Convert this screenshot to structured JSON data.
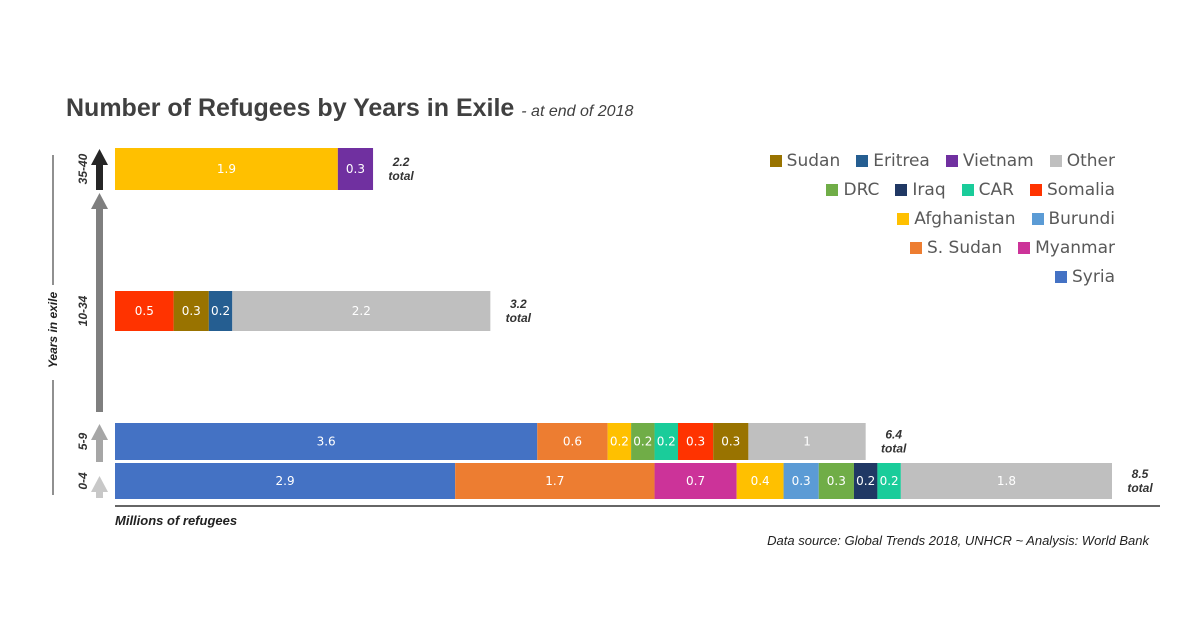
{
  "chart_data": {
    "type": "bar",
    "orientation": "horizontal",
    "stacked": true,
    "title": "Number of Refugees by Years in Exile",
    "subtitle": "- at end of 2018",
    "xlabel": "Millions of refugees",
    "ylabel": "Years in exile",
    "source": "Data source: Global Trends 2018, UNHCR  ~  Analysis: World Bank",
    "total_suffix": "total",
    "grid": false,
    "legend_position": "top-right",
    "colors": {
      "Sudan": "#997300",
      "Eritrea": "#255e91",
      "Vietnam": "#7030a0",
      "Other": "#bfbfbf",
      "DRC": "#70ad47",
      "Iraq": "#203864",
      "CAR": "#1acc9a",
      "Somalia": "#ff3300",
      "Afghanistan": "#ffc000",
      "Burundi": "#5b9bd5",
      "S. Sudan": "#ed7d31",
      "Myanmar": "#cc3399",
      "Syria": "#4472c4"
    },
    "legend_rows": [
      [
        "Sudan",
        "Eritrea",
        "Vietnam",
        "Other"
      ],
      [
        "DRC",
        "Iraq",
        "CAR",
        "Somalia"
      ],
      [
        "Afghanistan",
        "Burundi"
      ],
      [
        "S. Sudan",
        "Myanmar"
      ],
      [
        "Syria"
      ]
    ],
    "categories": [
      {
        "label": "35-40",
        "total": "2.2",
        "segments": [
          {
            "series": "Afghanistan",
            "value": 1.9,
            "label": "1.9"
          },
          {
            "series": "Vietnam",
            "value": 0.3,
            "label": "0.3"
          }
        ]
      },
      {
        "label": "10-34",
        "total": "3.2",
        "segments": [
          {
            "series": "Somalia",
            "value": 0.5,
            "label": "0.5"
          },
          {
            "series": "Sudan",
            "value": 0.3,
            "label": "0.3"
          },
          {
            "series": "Eritrea",
            "value": 0.2,
            "label": "0.2"
          },
          {
            "series": "Other",
            "value": 2.2,
            "label": "2.2"
          }
        ]
      },
      {
        "label": "5-9",
        "total": "6.4",
        "segments": [
          {
            "series": "Syria",
            "value": 3.6,
            "label": "3.6"
          },
          {
            "series": "S. Sudan",
            "value": 0.6,
            "label": "0.6"
          },
          {
            "series": "Afghanistan",
            "value": 0.2,
            "label": "0.2"
          },
          {
            "series": "DRC",
            "value": 0.2,
            "label": "0.2"
          },
          {
            "series": "CAR",
            "value": 0.2,
            "label": "0.2"
          },
          {
            "series": "Somalia",
            "value": 0.3,
            "label": "0.3"
          },
          {
            "series": "Sudan",
            "value": 0.3,
            "label": "0.3"
          },
          {
            "series": "Other",
            "value": 1.0,
            "label": "1"
          }
        ]
      },
      {
        "label": "0-4",
        "total": "8.5",
        "segments": [
          {
            "series": "Syria",
            "value": 2.9,
            "label": "2.9"
          },
          {
            "series": "S. Sudan",
            "value": 1.7,
            "label": "1.7"
          },
          {
            "series": "Myanmar",
            "value": 0.7,
            "label": "0.7"
          },
          {
            "series": "Afghanistan",
            "value": 0.4,
            "label": "0.4"
          },
          {
            "series": "Burundi",
            "value": 0.3,
            "label": "0.3"
          },
          {
            "series": "DRC",
            "value": 0.3,
            "label": "0.3"
          },
          {
            "series": "Iraq",
            "value": 0.2,
            "label": "0.2"
          },
          {
            "series": "CAR",
            "value": 0.2,
            "label": "0.2"
          },
          {
            "series": "Other",
            "value": 1.8,
            "label": "1.8"
          }
        ]
      }
    ],
    "xlim": [
      0,
      8.5
    ]
  }
}
